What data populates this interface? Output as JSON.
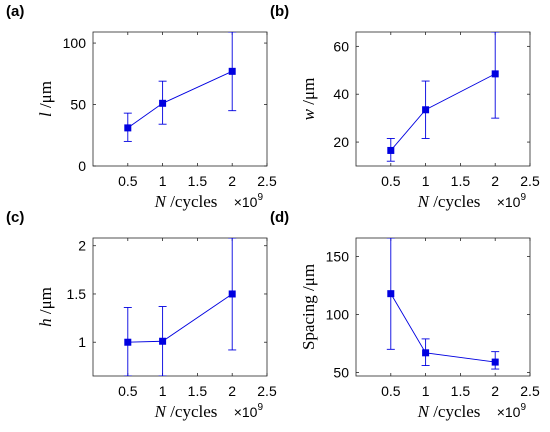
{
  "colors": {
    "series": "#0000e0",
    "axes": "#262626",
    "text": "#000000"
  },
  "chart_data": [
    {
      "type": "line",
      "panel": "(a)",
      "x": [
        0.5,
        1,
        2
      ],
      "y": [
        31,
        51,
        77
      ],
      "err_low": [
        20,
        34,
        45
      ],
      "err_high": [
        43,
        69,
        109
      ],
      "xlim": [
        0,
        2.5
      ],
      "ylim": [
        0,
        109
      ],
      "xticks": [
        0.5,
        1,
        1.5,
        2,
        2.5
      ],
      "yticks": [
        0,
        50,
        100
      ],
      "xtick_labels": [
        "0.5",
        "1",
        "1.5",
        "2",
        "2.5"
      ],
      "ytick_labels": [
        "0",
        "50",
        "100"
      ],
      "xlabel": {
        "var": "N",
        "unit": " /cycles"
      },
      "ylabel": {
        "var": "l",
        "unit": " /μm"
      },
      "x_exponent": {
        "base": "×10",
        "power": "9"
      },
      "marker": "square",
      "grid": false
    },
    {
      "type": "line",
      "panel": "(b)",
      "x": [
        0.5,
        1,
        2
      ],
      "y": [
        16.5,
        33.5,
        48.5
      ],
      "err_low": [
        12,
        21.5,
        30
      ],
      "err_high": [
        21.5,
        45.5,
        66
      ],
      "xlim": [
        0,
        2.5
      ],
      "ylim": [
        10,
        66
      ],
      "xticks": [
        0.5,
        1,
        1.5,
        2,
        2.5
      ],
      "yticks": [
        20,
        40,
        60
      ],
      "xtick_labels": [
        "0.5",
        "1",
        "1.5",
        "2",
        "2.5"
      ],
      "ytick_labels": [
        "20",
        "40",
        "60"
      ],
      "xlabel": {
        "var": "N",
        "unit": " /cycles"
      },
      "ylabel": {
        "var": "w",
        "unit": " /μm"
      },
      "x_exponent": {
        "base": "×10",
        "power": "9"
      },
      "marker": "square",
      "grid": false
    },
    {
      "type": "line",
      "panel": "(c)",
      "x": [
        0.5,
        1,
        2
      ],
      "y": [
        1.0,
        1.01,
        1.5
      ],
      "err_low": [
        0.65,
        0.65,
        0.92
      ],
      "err_high": [
        1.36,
        1.37,
        2.08
      ],
      "xlim": [
        0,
        2.5
      ],
      "ylim": [
        0.65,
        2.08
      ],
      "xticks": [
        0.5,
        1,
        1.5,
        2,
        2.5
      ],
      "yticks": [
        1,
        1.5,
        2
      ],
      "xtick_labels": [
        "0.5",
        "1",
        "1.5",
        "2",
        "2.5"
      ],
      "ytick_labels": [
        "1",
        "1.5",
        "2"
      ],
      "xlabel": {
        "var": "N",
        "unit": " /cycles"
      },
      "ylabel": {
        "var": "h",
        "unit": " /μm"
      },
      "x_exponent": {
        "base": "×10",
        "power": "9"
      },
      "marker": "square",
      "grid": false
    },
    {
      "type": "line",
      "panel": "(d)",
      "x": [
        0.5,
        1,
        2
      ],
      "y": [
        118,
        67,
        59
      ],
      "err_low": [
        70,
        56,
        53
      ],
      "err_high": [
        166,
        79,
        68
      ],
      "xlim": [
        0,
        2.5
      ],
      "ylim": [
        47,
        166
      ],
      "xticks": [
        0.5,
        1,
        1.5,
        2,
        2.5
      ],
      "yticks": [
        50,
        100,
        150
      ],
      "xtick_labels": [
        "0.5",
        "1",
        "1.5",
        "2",
        "2.5"
      ],
      "ytick_labels": [
        "50",
        "100",
        "150"
      ],
      "xlabel": {
        "var": "N",
        "unit": " /cycles"
      },
      "ylabel": {
        "var": "Spacing",
        "unit": " /μm"
      },
      "x_exponent": {
        "base": "×10",
        "power": "9"
      },
      "marker": "square",
      "grid": false
    }
  ]
}
